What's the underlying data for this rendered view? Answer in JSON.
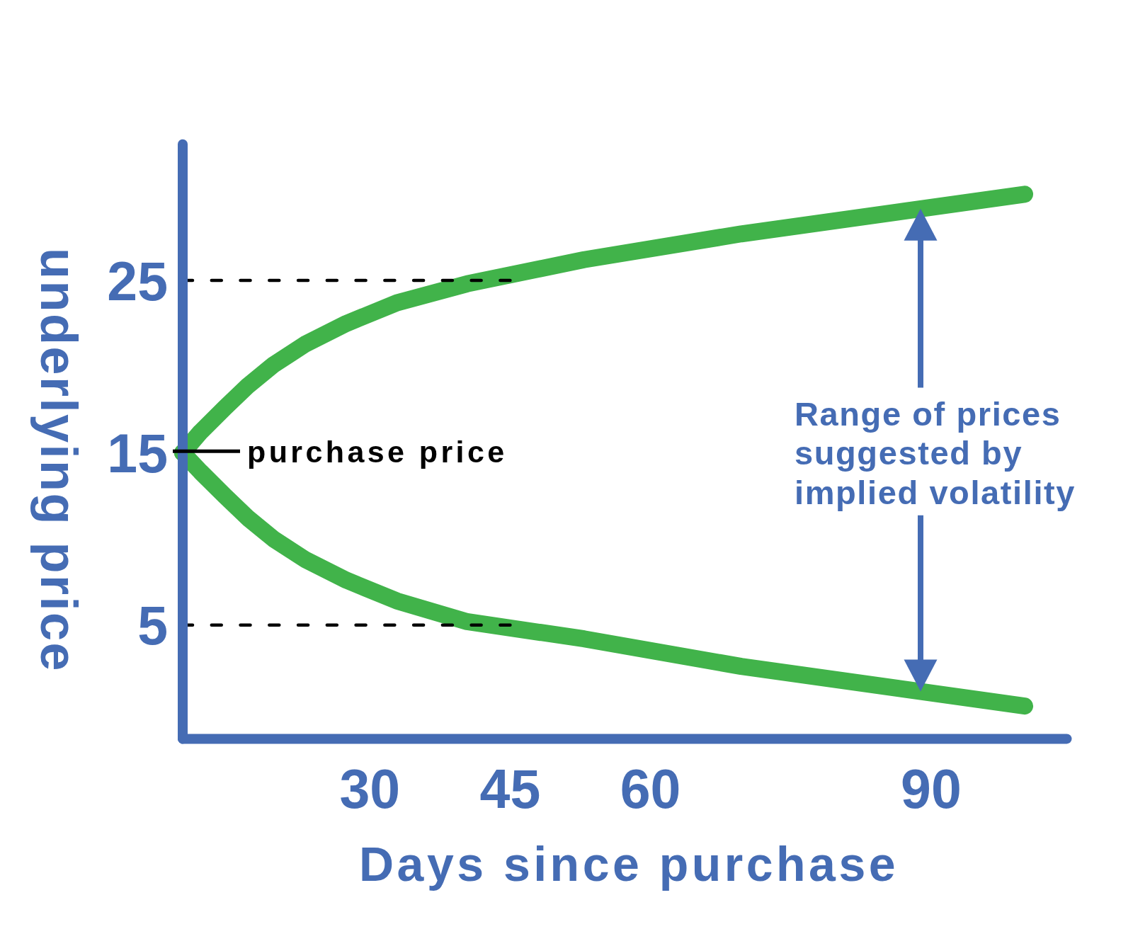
{
  "chart_data": {
    "type": "line",
    "xlabel": "Days since purchase",
    "ylabel": "underlying price",
    "xlim": [
      10,
      104.5
    ],
    "xticks": [
      30,
      45,
      60,
      90
    ],
    "ylim": [
      -1.6,
      32.9
    ],
    "yticks": [
      5,
      15,
      25
    ],
    "line_style": "solid",
    "series": [
      {
        "color": "#41b34a",
        "x": [
          10,
          11.9,
          14.5,
          17.0,
          19.7,
          23.1,
          27.5,
          32.9,
          40.4,
          52.9,
          69.7,
          100
        ],
        "values": [
          15,
          16.2,
          17.6,
          18.9,
          20.1,
          21.3,
          22.5,
          23.7,
          24.8,
          26.2,
          27.7,
          30.0
        ]
      },
      {
        "color": "#41b34a",
        "x": [
          10,
          11.9,
          14.5,
          17.0,
          19.7,
          23.1,
          27.5,
          32.9,
          40.4,
          52.9,
          69.7,
          100
        ],
        "values": [
          15,
          13.9,
          12.5,
          11.2,
          10.0,
          8.8,
          7.6,
          6.4,
          5.2,
          4.2,
          2.6,
          0.3
        ]
      },
      {
        "type": "line",
        "color": "#000000",
        "line_style": "dashed",
        "x": [
          10,
          45
        ],
        "values": [
          25,
          25
        ]
      },
      {
        "type": "line",
        "color": "#000000",
        "line_style": "dashed",
        "x": [
          10,
          45
        ],
        "values": [
          5,
          5
        ]
      }
    ],
    "annotations": [
      {
        "text": "purchase price",
        "x": 10,
        "y": 15
      },
      "Range of prices\nsuggested by\nimplied volatility"
    ]
  }
}
